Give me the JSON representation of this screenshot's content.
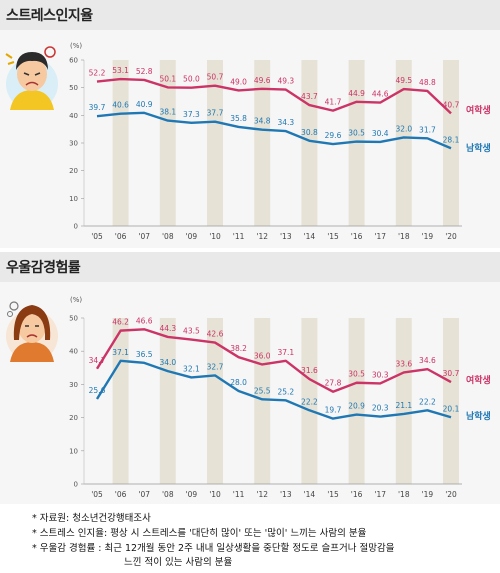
{
  "charts": [
    {
      "title": "스트레스인지율",
      "avatar": "stressed-student-icon"
    },
    {
      "title": "우울감경험률",
      "avatar": "sad-student-icon"
    }
  ],
  "chart_data": [
    {
      "type": "line",
      "title": "스트레스인지율",
      "unit": "(%)",
      "categories": [
        "'05",
        "'06",
        "'07",
        "'08",
        "'09",
        "'10",
        "'11",
        "'12",
        "'13",
        "'14",
        "'15",
        "'16",
        "'17",
        "'18",
        "'19",
        "'20"
      ],
      "ylim": [
        0,
        60
      ],
      "yticks": [
        0,
        10,
        20,
        30,
        40,
        50,
        60
      ],
      "series": [
        {
          "name": "여학생",
          "color": "#cc3366",
          "values": [
            52.2,
            53.1,
            52.8,
            50.1,
            50.0,
            50.7,
            49.0,
            49.6,
            49.3,
            43.7,
            41.7,
            44.9,
            44.6,
            49.5,
            48.8,
            40.7
          ]
        },
        {
          "name": "남학생",
          "color": "#1f78b4",
          "values": [
            39.7,
            40.6,
            40.9,
            38.1,
            37.3,
            37.7,
            35.8,
            34.8,
            34.3,
            30.8,
            29.6,
            30.5,
            30.4,
            32.0,
            31.7,
            28.1
          ]
        }
      ]
    },
    {
      "type": "line",
      "title": "우울감경험률",
      "unit": "(%)",
      "categories": [
        "'05",
        "'06",
        "'07",
        "'08",
        "'09",
        "'10",
        "'11",
        "'12",
        "'13",
        "'14",
        "'15",
        "'16",
        "'17",
        "'18",
        "'19",
        "'20"
      ],
      "ylim": [
        0,
        50
      ],
      "yticks": [
        0,
        10,
        20,
        30,
        40,
        50
      ],
      "series": [
        {
          "name": "여학생",
          "color": "#cc3366",
          "values": [
            34.7,
            46.2,
            46.6,
            44.3,
            43.5,
            42.6,
            38.2,
            36.0,
            37.1,
            31.6,
            27.8,
            30.5,
            30.3,
            33.6,
            34.6,
            30.7
          ]
        },
        {
          "name": "남학생",
          "color": "#1f78b4",
          "values": [
            25.6,
            37.1,
            36.5,
            34.0,
            32.1,
            32.7,
            28.0,
            25.5,
            25.2,
            22.2,
            19.7,
            20.9,
            20.3,
            21.1,
            22.2,
            20.1
          ]
        }
      ]
    }
  ],
  "notes": {
    "source": "* 자료원: 청소년건강행태조사",
    "stress_def": "* 스트레스 인지율: 평상 시 스트레스를 '대단히 많이' 또는 '많이' 느끼는 사람의 분율",
    "depress_def_1": "* 우울감 경험률 : 최근 12개월 동안 2주 내내 일상생활을 중단할 정도로 슬프거나 절망감을",
    "depress_def_2": "느낀 적이 있는 사람의 분율"
  }
}
